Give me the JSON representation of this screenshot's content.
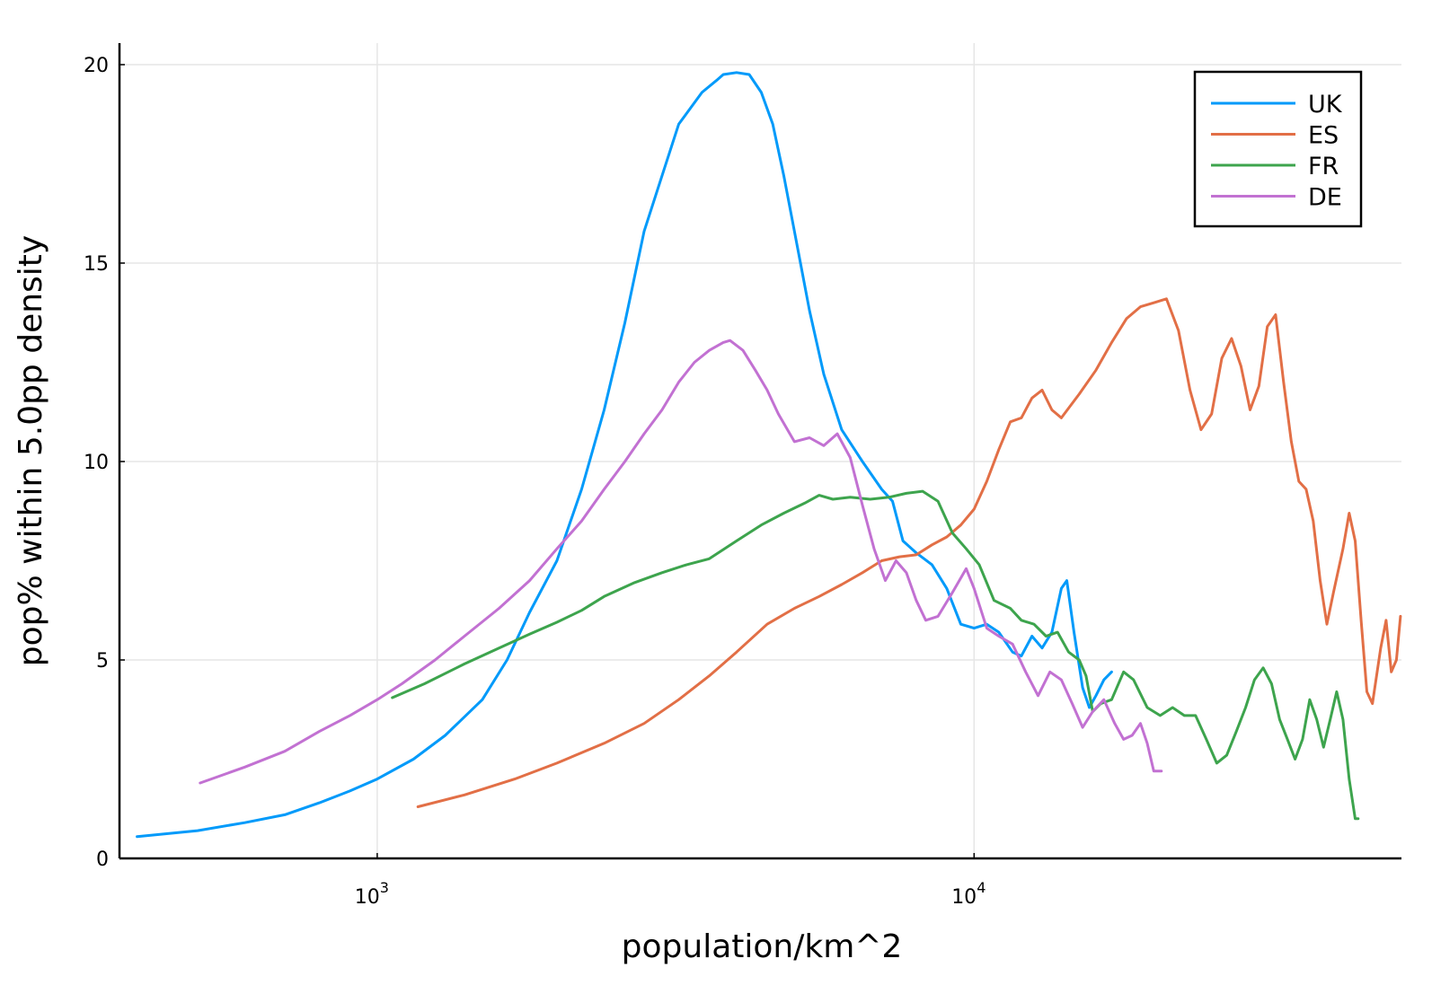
{
  "chart_data": {
    "type": "line",
    "title": "",
    "xlabel": "population/km^2",
    "ylabel": "pop% within 5.0pp density",
    "xscale": "log",
    "xlim": [
      370,
      52000
    ],
    "ylim": [
      0,
      20.5
    ],
    "x_ticks": [
      {
        "value": 1000,
        "base": "10",
        "exp": "3"
      },
      {
        "value": 10000,
        "base": "10",
        "exp": "4"
      }
    ],
    "y_ticks": [
      {
        "value": 0,
        "label": "0"
      },
      {
        "value": 5,
        "label": "5"
      },
      {
        "value": 10,
        "label": "10"
      },
      {
        "value": 15,
        "label": "15"
      },
      {
        "value": 20,
        "label": "20"
      }
    ],
    "grid": true,
    "legend_position": "top-right",
    "series": [
      {
        "name": "UK",
        "color": "#009AFA",
        "points": [
          [
            396,
            0.55
          ],
          [
            500,
            0.7
          ],
          [
            600,
            0.9
          ],
          [
            700,
            1.1
          ],
          [
            800,
            1.4
          ],
          [
            900,
            1.7
          ],
          [
            1000,
            2.0
          ],
          [
            1150,
            2.5
          ],
          [
            1300,
            3.1
          ],
          [
            1500,
            4.0
          ],
          [
            1650,
            5.0
          ],
          [
            1800,
            6.2
          ],
          [
            2000,
            7.5
          ],
          [
            2200,
            9.3
          ],
          [
            2400,
            11.3
          ],
          [
            2600,
            13.5
          ],
          [
            2800,
            15.8
          ],
          [
            3000,
            17.2
          ],
          [
            3200,
            18.5
          ],
          [
            3500,
            19.3
          ],
          [
            3700,
            19.6
          ],
          [
            3800,
            19.75
          ],
          [
            4000,
            19.8
          ],
          [
            4200,
            19.75
          ],
          [
            4400,
            19.3
          ],
          [
            4600,
            18.5
          ],
          [
            4800,
            17.2
          ],
          [
            5000,
            15.8
          ],
          [
            5300,
            13.8
          ],
          [
            5600,
            12.2
          ],
          [
            6000,
            10.8
          ],
          [
            6500,
            10.0
          ],
          [
            7000,
            9.3
          ],
          [
            7300,
            9.0
          ],
          [
            7600,
            8.0
          ],
          [
            8000,
            7.7
          ],
          [
            8500,
            7.4
          ],
          [
            9000,
            6.8
          ],
          [
            9500,
            5.9
          ],
          [
            10000,
            5.8
          ],
          [
            10500,
            5.9
          ],
          [
            11000,
            5.7
          ],
          [
            11600,
            5.2
          ],
          [
            12000,
            5.1
          ],
          [
            12500,
            5.6
          ],
          [
            13000,
            5.3
          ],
          [
            13500,
            5.7
          ],
          [
            14000,
            6.8
          ],
          [
            14300,
            7.0
          ],
          [
            14700,
            5.7
          ],
          [
            15200,
            4.3
          ],
          [
            15600,
            3.8
          ],
          [
            16000,
            4.1
          ],
          [
            16500,
            4.5
          ],
          [
            17000,
            4.7
          ]
        ]
      },
      {
        "name": "ES",
        "color": "#E26F46",
        "points": [
          [
            1170,
            1.3
          ],
          [
            1400,
            1.6
          ],
          [
            1700,
            2.0
          ],
          [
            2000,
            2.4
          ],
          [
            2400,
            2.9
          ],
          [
            2800,
            3.4
          ],
          [
            3200,
            4.0
          ],
          [
            3600,
            4.6
          ],
          [
            4000,
            5.2
          ],
          [
            4500,
            5.9
          ],
          [
            5000,
            6.3
          ],
          [
            5500,
            6.6
          ],
          [
            6000,
            6.9
          ],
          [
            6500,
            7.2
          ],
          [
            7000,
            7.5
          ],
          [
            7500,
            7.6
          ],
          [
            8000,
            7.65
          ],
          [
            8500,
            7.9
          ],
          [
            9000,
            8.1
          ],
          [
            9500,
            8.4
          ],
          [
            10000,
            8.8
          ],
          [
            10500,
            9.5
          ],
          [
            11000,
            10.3
          ],
          [
            11500,
            11.0
          ],
          [
            12000,
            11.1
          ],
          [
            12500,
            11.6
          ],
          [
            13000,
            11.8
          ],
          [
            13500,
            11.3
          ],
          [
            14000,
            11.1
          ],
          [
            15000,
            11.7
          ],
          [
            16000,
            12.3
          ],
          [
            17000,
            13.0
          ],
          [
            18000,
            13.6
          ],
          [
            19000,
            13.9
          ],
          [
            20000,
            14.0
          ],
          [
            21000,
            14.1
          ],
          [
            22000,
            13.3
          ],
          [
            23000,
            11.8
          ],
          [
            24000,
            10.8
          ],
          [
            25000,
            11.2
          ],
          [
            26000,
            12.6
          ],
          [
            27000,
            13.1
          ],
          [
            28000,
            12.4
          ],
          [
            29000,
            11.3
          ],
          [
            30000,
            11.9
          ],
          [
            31000,
            13.4
          ],
          [
            32000,
            13.7
          ],
          [
            33000,
            12.0
          ],
          [
            34000,
            10.5
          ],
          [
            35000,
            9.5
          ],
          [
            36000,
            9.3
          ],
          [
            37000,
            8.5
          ],
          [
            38000,
            7.0
          ],
          [
            39000,
            5.9
          ],
          [
            40000,
            6.7
          ],
          [
            41500,
            7.8
          ],
          [
            42500,
            8.7
          ],
          [
            43500,
            8.0
          ],
          [
            44500,
            6.0
          ],
          [
            45500,
            4.2
          ],
          [
            46500,
            3.9
          ],
          [
            48000,
            5.3
          ],
          [
            49000,
            6.0
          ],
          [
            50000,
            4.7
          ],
          [
            51000,
            5.0
          ],
          [
            51800,
            6.1
          ]
        ]
      },
      {
        "name": "FR",
        "color": "#3DA44D",
        "points": [
          [
            1060,
            4.05
          ],
          [
            1200,
            4.4
          ],
          [
            1400,
            4.9
          ],
          [
            1600,
            5.3
          ],
          [
            1800,
            5.65
          ],
          [
            2000,
            5.95
          ],
          [
            2200,
            6.25
          ],
          [
            2400,
            6.6
          ],
          [
            2700,
            6.95
          ],
          [
            3000,
            7.2
          ],
          [
            3300,
            7.4
          ],
          [
            3600,
            7.55
          ],
          [
            4000,
            8.0
          ],
          [
            4400,
            8.4
          ],
          [
            4800,
            8.7
          ],
          [
            5200,
            8.95
          ],
          [
            5500,
            9.15
          ],
          [
            5800,
            9.05
          ],
          [
            6200,
            9.1
          ],
          [
            6700,
            9.05
          ],
          [
            7200,
            9.1
          ],
          [
            7700,
            9.2
          ],
          [
            8200,
            9.25
          ],
          [
            8700,
            9.0
          ],
          [
            9200,
            8.2
          ],
          [
            9700,
            7.8
          ],
          [
            10200,
            7.4
          ],
          [
            10800,
            6.5
          ],
          [
            11500,
            6.3
          ],
          [
            12000,
            6.0
          ],
          [
            12600,
            5.9
          ],
          [
            13200,
            5.6
          ],
          [
            13800,
            5.7
          ],
          [
            14400,
            5.2
          ],
          [
            15000,
            5.0
          ],
          [
            15400,
            4.6
          ],
          [
            15800,
            3.7
          ],
          [
            16300,
            3.9
          ],
          [
            17000,
            4.0
          ],
          [
            17800,
            4.7
          ],
          [
            18500,
            4.5
          ],
          [
            19500,
            3.8
          ],
          [
            20500,
            3.6
          ],
          [
            21500,
            3.8
          ],
          [
            22500,
            3.6
          ],
          [
            23500,
            3.6
          ],
          [
            24500,
            3.0
          ],
          [
            25500,
            2.4
          ],
          [
            26500,
            2.6
          ],
          [
            27500,
            3.2
          ],
          [
            28500,
            3.8
          ],
          [
            29500,
            4.5
          ],
          [
            30500,
            4.8
          ],
          [
            31500,
            4.4
          ],
          [
            32500,
            3.5
          ],
          [
            33500,
            3.0
          ],
          [
            34500,
            2.5
          ],
          [
            35500,
            3.0
          ],
          [
            36500,
            4.0
          ],
          [
            37500,
            3.5
          ],
          [
            38500,
            2.8
          ],
          [
            39500,
            3.5
          ],
          [
            40500,
            4.2
          ],
          [
            41500,
            3.5
          ],
          [
            42500,
            2.0
          ],
          [
            43500,
            1.0
          ],
          [
            44000,
            1.0
          ]
        ]
      },
      {
        "name": "DE",
        "color": "#C271D2",
        "points": [
          [
            505,
            1.9
          ],
          [
            600,
            2.3
          ],
          [
            700,
            2.7
          ],
          [
            800,
            3.2
          ],
          [
            900,
            3.6
          ],
          [
            1000,
            4.0
          ],
          [
            1100,
            4.4
          ],
          [
            1250,
            5.0
          ],
          [
            1400,
            5.6
          ],
          [
            1600,
            6.3
          ],
          [
            1800,
            7.0
          ],
          [
            2000,
            7.8
          ],
          [
            2200,
            8.5
          ],
          [
            2400,
            9.3
          ],
          [
            2600,
            10.0
          ],
          [
            2800,
            10.7
          ],
          [
            3000,
            11.3
          ],
          [
            3200,
            12.0
          ],
          [
            3400,
            12.5
          ],
          [
            3600,
            12.8
          ],
          [
            3800,
            13.0
          ],
          [
            3900,
            13.05
          ],
          [
            4100,
            12.8
          ],
          [
            4300,
            12.3
          ],
          [
            4500,
            11.8
          ],
          [
            4700,
            11.2
          ],
          [
            5000,
            10.5
          ],
          [
            5300,
            10.6
          ],
          [
            5600,
            10.4
          ],
          [
            5900,
            10.7
          ],
          [
            6200,
            10.1
          ],
          [
            6500,
            8.9
          ],
          [
            6800,
            7.8
          ],
          [
            7100,
            7.0
          ],
          [
            7400,
            7.5
          ],
          [
            7700,
            7.2
          ],
          [
            8000,
            6.5
          ],
          [
            8300,
            6.0
          ],
          [
            8700,
            6.1
          ],
          [
            9200,
            6.7
          ],
          [
            9700,
            7.3
          ],
          [
            10000,
            6.8
          ],
          [
            10500,
            5.8
          ],
          [
            11000,
            5.6
          ],
          [
            11600,
            5.4
          ],
          [
            12200,
            4.7
          ],
          [
            12800,
            4.1
          ],
          [
            13400,
            4.7
          ],
          [
            14000,
            4.5
          ],
          [
            14600,
            3.9
          ],
          [
            15200,
            3.3
          ],
          [
            15800,
            3.7
          ],
          [
            16500,
            4.0
          ],
          [
            17200,
            3.4
          ],
          [
            17800,
            3.0
          ],
          [
            18400,
            3.1
          ],
          [
            19000,
            3.4
          ],
          [
            19500,
            2.9
          ],
          [
            20000,
            2.2
          ],
          [
            20600,
            2.2
          ]
        ]
      }
    ]
  }
}
